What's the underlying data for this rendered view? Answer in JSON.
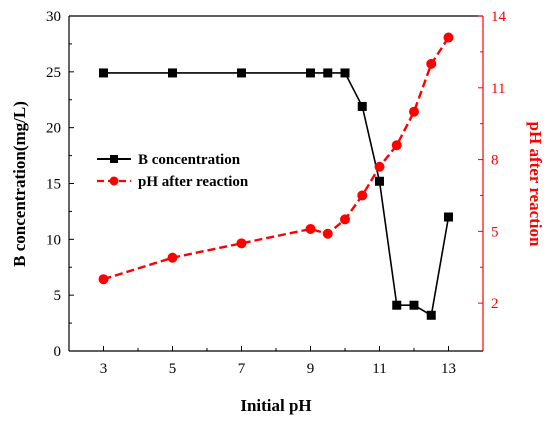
{
  "chart_data": {
    "type": "line",
    "title": "",
    "xlabel": "Initial pH",
    "ylabel": "B concentration(mg/L)",
    "y2label": "pH after reaction",
    "xlim": [
      2,
      14
    ],
    "ylim": [
      0,
      30
    ],
    "y2lim": [
      0,
      14
    ],
    "x_ticks": [
      3,
      5,
      7,
      9,
      11,
      13
    ],
    "y_ticks": [
      0,
      5,
      10,
      15,
      20,
      25,
      30
    ],
    "y2_ticks": [
      2,
      5,
      8,
      11,
      14
    ],
    "grid": false,
    "legend_position": "center-left",
    "series": [
      {
        "name": "B concentration",
        "axis": "left",
        "color": "#000000",
        "marker": "square",
        "line_style": "solid",
        "x": [
          3,
          5,
          7,
          9,
          9.5,
          10,
          10.5,
          11,
          11.5,
          12,
          12.5,
          13
        ],
        "y": [
          24.9,
          24.9,
          24.9,
          24.9,
          24.9,
          24.9,
          21.9,
          15.2,
          4.1,
          4.1,
          3.2,
          12.0
        ]
      },
      {
        "name": "pH after reaction",
        "axis": "right",
        "color": "#ff0000",
        "marker": "circle",
        "line_style": "dashed",
        "x": [
          3,
          5,
          7,
          9,
          9.5,
          10,
          10.5,
          11,
          11.5,
          12,
          12.5,
          13
        ],
        "y": [
          3.0,
          3.9,
          4.5,
          5.1,
          4.9,
          5.5,
          6.5,
          7.7,
          8.6,
          10.0,
          12.0,
          13.1
        ]
      }
    ]
  }
}
